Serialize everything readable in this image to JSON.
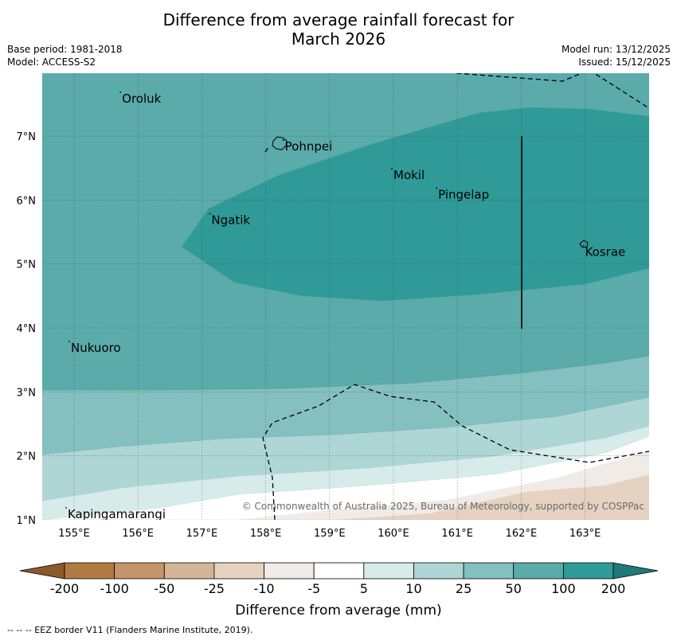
{
  "title_line1": "Difference from average rainfall forecast for",
  "title_line2": "March 2026",
  "base_period": "Base period: 1981-2018",
  "model": "Model: ACCESS-S2",
  "model_run": "Model run: 13/12/2025",
  "issued": "Issued: 15/12/2025",
  "copyright": "© Commonwealth of Australia 2025, Bureau of Meteorology, supported by COSPPac",
  "footnote": "--  --  -- EEZ border V11 (Flanders Marine Institute, 2019).",
  "colorbar_label": "Difference from average (mm)",
  "map": {
    "lat_ticks": [
      "7°N",
      "6°N",
      "5°N",
      "4°N",
      "3°N",
      "2°N",
      "1°N"
    ],
    "lon_ticks": [
      "155°E",
      "156°E",
      "157°E",
      "158°E",
      "159°E",
      "160°E",
      "161°E",
      "162°E",
      "163°E"
    ]
  },
  "places": [
    {
      "name": "Oroluk",
      "lon": 155.75,
      "lat": 7.6
    },
    {
      "name": "Pohnpei",
      "lon": 158.3,
      "lat": 6.85
    },
    {
      "name": "Mokil",
      "lon": 160.0,
      "lat": 6.4
    },
    {
      "name": "Pingelap",
      "lon": 160.7,
      "lat": 6.1
    },
    {
      "name": "Ngatik",
      "lon": 157.15,
      "lat": 5.7
    },
    {
      "name": "Kosrae",
      "lon": 163.0,
      "lat": 5.2
    },
    {
      "name": "Nukuoro",
      "lon": 154.95,
      "lat": 3.7
    },
    {
      "name": "Kapingamarangi",
      "lon": 154.9,
      "lat": 1.1
    }
  ],
  "colorbar": {
    "tick_labels": [
      "-200",
      "-100",
      "-50",
      "-25",
      "-10",
      "-5",
      "5",
      "10",
      "25",
      "50",
      "100",
      "200"
    ],
    "colors": [
      "#8c5a2a",
      "#b07a43",
      "#c4956a",
      "#d6b597",
      "#e5d2c1",
      "#f0ebe7",
      "#ffffff",
      "#d6ebea",
      "#aed6d5",
      "#84c0bf",
      "#5aabaa",
      "#2f9a98",
      "#1f7a78"
    ]
  }
}
